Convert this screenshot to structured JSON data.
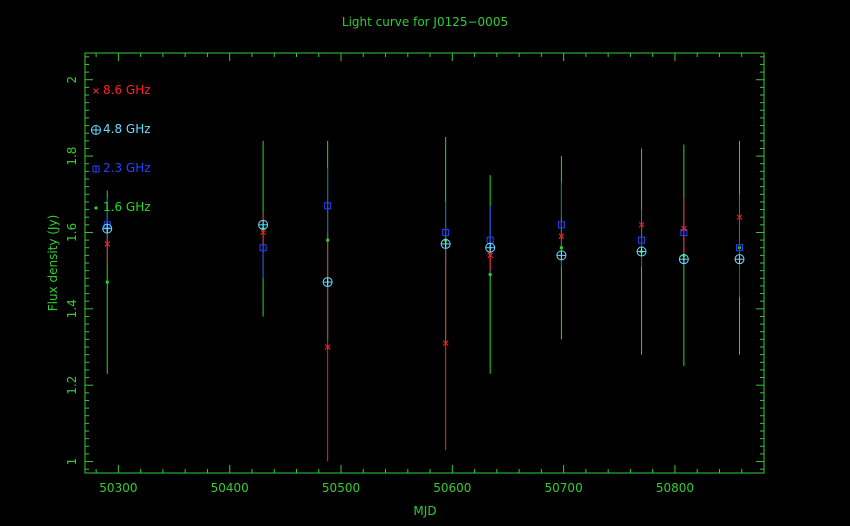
{
  "chart_data": {
    "type": "scatter",
    "title": "Light curve for J0125−0005",
    "xlabel": "MJD",
    "ylabel": "Flux density (Jy)",
    "xlim": [
      50270,
      50880
    ],
    "ylim": [
      0.97,
      2.07
    ],
    "x_ticks": [
      "50300",
      "50400",
      "50500",
      "50600",
      "50700",
      "50800"
    ],
    "y_ticks": [
      "1",
      "1.2",
      "1.4",
      "1.6",
      "1.8",
      "2"
    ],
    "grid": false,
    "legend_placement": "top-left",
    "axis_color": "#33cc33",
    "title_color": "#33cc33",
    "series": [
      {
        "name": "8.6 GHz",
        "marker": "x",
        "color": "#ff2020",
        "points": [
          {
            "x": 50290,
            "y": 1.57,
            "err": 0.05
          },
          {
            "x": 50430,
            "y": 1.6,
            "err": 0.05
          },
          {
            "x": 50488,
            "y": 1.3,
            "err": 0.3
          },
          {
            "x": 50594,
            "y": 1.31,
            "err": 0.28
          },
          {
            "x": 50634,
            "y": 1.54,
            "err": 0.04
          },
          {
            "x": 50698,
            "y": 1.59,
            "err": 0.05
          },
          {
            "x": 50770,
            "y": 1.62,
            "err": 0.04
          },
          {
            "x": 50808,
            "y": 1.61,
            "err": 0.08
          },
          {
            "x": 50858,
            "y": 1.64,
            "err": 0.06
          }
        ]
      },
      {
        "name": "4.8 GHz",
        "marker": "circle-plus",
        "color": "#66ddff",
        "points": [
          {
            "x": 50290,
            "y": 1.61,
            "err": 0.01
          },
          {
            "x": 50430,
            "y": 1.62,
            "err": 0.01
          },
          {
            "x": 50488,
            "y": 1.47,
            "err": 0.01
          },
          {
            "x": 50594,
            "y": 1.57,
            "err": 0.01
          },
          {
            "x": 50634,
            "y": 1.56,
            "err": 0.01
          },
          {
            "x": 50698,
            "y": 1.54,
            "err": 0.01
          },
          {
            "x": 50770,
            "y": 1.55,
            "err": 0.01
          },
          {
            "x": 50808,
            "y": 1.53,
            "err": 0.01
          },
          {
            "x": 50858,
            "y": 1.53,
            "err": 0.01
          }
        ]
      },
      {
        "name": "2.3 GHz",
        "marker": "square",
        "color": "#2244ff",
        "points": [
          {
            "x": 50290,
            "y": 1.62,
            "err": 0.07
          },
          {
            "x": 50430,
            "y": 1.56,
            "err": 0.08
          },
          {
            "x": 50488,
            "y": 1.67,
            "err": 0.1
          },
          {
            "x": 50594,
            "y": 1.6,
            "err": 0.08
          },
          {
            "x": 50634,
            "y": 1.58,
            "err": 0.09
          },
          {
            "x": 50698,
            "y": 1.62,
            "err": 0.11
          },
          {
            "x": 50770,
            "y": 1.58,
            "err": 0.07
          },
          {
            "x": 50808,
            "y": 1.6,
            "err": 0.08
          },
          {
            "x": 50858,
            "y": 1.56,
            "err": 0.13
          }
        ]
      },
      {
        "name": "1.6 GHz",
        "marker": "dot",
        "color": "#22dd22",
        "points": [
          {
            "x": 50290,
            "y": 1.47,
            "err": 0.24
          },
          {
            "x": 50430,
            "y": 1.61,
            "err": 0.23
          },
          {
            "x": 50488,
            "y": 1.58,
            "err": 0.26
          },
          {
            "x": 50594,
            "y": 1.58,
            "err": 0.27
          },
          {
            "x": 50634,
            "y": 1.49,
            "err": 0.26
          },
          {
            "x": 50698,
            "y": 1.56,
            "err": 0.24
          },
          {
            "x": 50770,
            "y": 1.55,
            "err": 0.27
          },
          {
            "x": 50808,
            "y": 1.54,
            "err": 0.29
          },
          {
            "x": 50858,
            "y": 1.56,
            "err": 0.28
          }
        ]
      }
    ]
  }
}
